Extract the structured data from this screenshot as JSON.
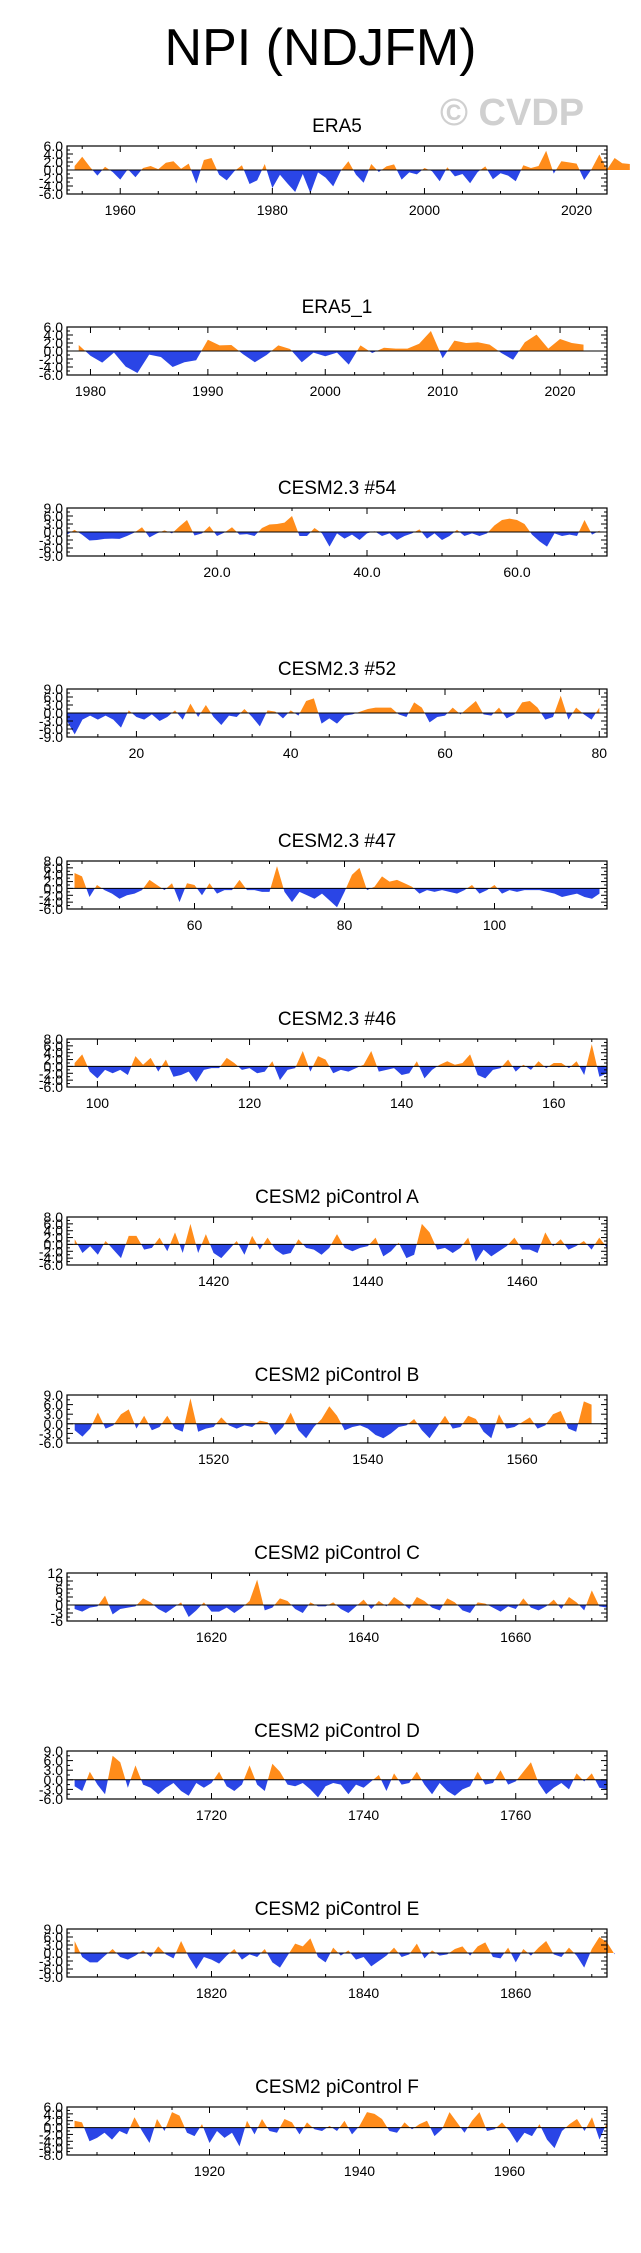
{
  "page": {
    "title": "NPI (NDJFM)",
    "watermark": "© CVDP"
  },
  "colors": {
    "positive": "#ff8c1a",
    "negative": "#2a45e6",
    "axis": "#000000"
  },
  "chart_data": [
    {
      "type": "area",
      "title": "ERA5",
      "xlim": [
        1953,
        2024
      ],
      "ylim": [
        -6,
        6
      ],
      "yticks": [
        -6,
        -4,
        -2,
        0,
        2,
        4,
        6
      ],
      "ytick_labels": [
        "-6.0",
        "-4.0",
        "-2.0",
        "0.0",
        "2.0",
        "4.0",
        "6.0"
      ],
      "xticks": [
        1960,
        1980,
        2000,
        2020
      ],
      "xtick_labels": [
        "1960",
        "1980",
        "2000",
        "2020"
      ],
      "x_start": 1954,
      "values": [
        1.0,
        3.3,
        0.8,
        -1.4,
        0.8,
        -0.5,
        -2.4,
        0.2,
        -1.8,
        0.5,
        1.0,
        0.2,
        1.8,
        2.2,
        0.3,
        1.6,
        -3.4,
        2.5,
        3.0,
        -1.2,
        -2.6,
        -0.3,
        1.2,
        -3.5,
        -2.6,
        1.5,
        -4.5,
        -1.2,
        -3.4,
        -5.5,
        -1.0,
        -5.8,
        -0.6,
        -1.9,
        -4.1,
        -0.2,
        2.2,
        -1.2,
        -3.2,
        1.5,
        -0.5,
        0.9,
        1.4,
        -2.4,
        -0.6,
        -1.1,
        0.5,
        -0.3,
        -2.8,
        0.7,
        -1.6,
        -1.0,
        -3.3,
        -0.5,
        0.9,
        -2.3,
        -0.8,
        -1.4,
        -2.8,
        1.2,
        0.5,
        1.0,
        4.8,
        -0.9,
        2.2,
        1.9,
        1.6,
        -2.5,
        0.3,
        3.9,
        0.1,
        3.0,
        1.7,
        1.5
      ]
    },
    {
      "type": "area",
      "title": "ERA5_1",
      "xlim": [
        1978,
        2024
      ],
      "ylim": [
        -6,
        6
      ],
      "yticks": [
        -6,
        -4,
        -2,
        0,
        2,
        4,
        6
      ],
      "ytick_labels": [
        "-6.0",
        "-4.0",
        "-2.0",
        "0.0",
        "2.0",
        "4.0",
        "6.0"
      ],
      "xticks": [
        1980,
        1990,
        2000,
        2010,
        2020
      ],
      "xtick_labels": [
        "1980",
        "1990",
        "2000",
        "2010",
        "2020"
      ],
      "x_start": 1979,
      "values": [
        1.5,
        -1.2,
        -2.9,
        -0.4,
        -3.9,
        -5.5,
        -0.9,
        -1.5,
        -4.0,
        -2.8,
        -2.3,
        2.8,
        1.4,
        1.5,
        -0.8,
        -2.8,
        -1.0,
        1.4,
        0.5,
        -2.8,
        -0.4,
        -1.3,
        -0.4,
        -3.4,
        1.4,
        -0.5,
        0.8,
        0.6,
        0.6,
        1.8,
        5.0,
        -1.8,
        2.6,
        2.0,
        2.2,
        1.6,
        -0.5,
        -2.2,
        2.2,
        4.1,
        0.6,
        3.0,
        2.0,
        1.6
      ]
    },
    {
      "type": "area",
      "title": "CESM2.3 #54",
      "xlim": [
        0,
        72
      ],
      "ylim": [
        -9,
        9
      ],
      "yticks": [
        -9,
        -6,
        -3,
        0,
        3,
        6,
        9
      ],
      "ytick_labels": [
        "-9.0",
        "-6.0",
        "-3.0",
        "0.0",
        "3.0",
        "6.0",
        "9.0"
      ],
      "xticks": [
        20,
        40,
        60
      ],
      "xtick_labels": [
        "20.0",
        "40.0",
        "60.0"
      ],
      "x_start": 0,
      "values": [
        -1.0,
        0.8,
        -1.0,
        -3.2,
        -3.0,
        -2.6,
        -2.5,
        -2.6,
        -1.5,
        -0.2,
        1.8,
        -2.0,
        -0.5,
        0.6,
        -0.5,
        2.1,
        4.5,
        -1.3,
        -0.5,
        2.2,
        -1.5,
        -0.2,
        1.8,
        -1.0,
        -0.8,
        -1.5,
        1.5,
        2.8,
        3.0,
        3.5,
        6.0,
        -1.5,
        -1.5,
        1.5,
        -0.5,
        -5.5,
        -0.5,
        -2.5,
        -1.0,
        -3.0,
        -0.5,
        0.3,
        -1.5,
        -0.5,
        -3.0,
        -1.5,
        -0.5,
        1.0,
        -2.5,
        -0.5,
        -3.0,
        -1.5,
        0.8,
        -1.5,
        -0.5,
        -1.5,
        -0.5,
        2.5,
        4.5,
        5.0,
        4.5,
        3.0,
        -1.0,
        -3.5,
        -5.5,
        -0.5,
        -1.5,
        -1.0,
        -1.5,
        4.5,
        -1.0,
        0.5
      ]
    },
    {
      "type": "area",
      "title": "CESM2.3 #52",
      "xlim": [
        11,
        81
      ],
      "ylim": [
        -9,
        9
      ],
      "yticks": [
        -9,
        -6,
        -3,
        0,
        3,
        6,
        9
      ],
      "ytick_labels": [
        "-9.0",
        "-6.0",
        "-3.0",
        "0.0",
        "3.0",
        "6.0",
        "9.0"
      ],
      "xticks": [
        20,
        40,
        60,
        80
      ],
      "xtick_labels": [
        "20",
        "40",
        "60",
        "80"
      ],
      "x_start": 11,
      "values": [
        -3.0,
        -8.0,
        -2.5,
        -1.0,
        -2.5,
        -1.0,
        -2.5,
        -5.5,
        1.0,
        -1.5,
        -2.5,
        -0.5,
        -3.0,
        -1.5,
        1.0,
        -2.5,
        3.5,
        -1.5,
        3.0,
        -1.5,
        -4.5,
        -1.0,
        -1.5,
        1.5,
        -1.5,
        -5.0,
        1.0,
        0.5,
        -2.0,
        1.0,
        -1.0,
        4.5,
        5.5,
        -4.0,
        -2.0,
        -4.0,
        -1.0,
        -0.5,
        0.5,
        1.5,
        2.0,
        2.0,
        2.0,
        -0.5,
        -1.5,
        4.0,
        2.0,
        -3.5,
        -1.5,
        -1.0,
        2.0,
        -0.5,
        2.0,
        4.5,
        -0.5,
        -1.0,
        2.0,
        -2.0,
        -0.5,
        4.0,
        4.5,
        2.0,
        -2.5,
        -1.5,
        6.5,
        -2.5,
        2.0,
        -0.5,
        -2.5,
        2.0
      ]
    },
    {
      "type": "area",
      "title": "CESM2.3 #47",
      "xlim": [
        43,
        115
      ],
      "ylim": [
        -6,
        8
      ],
      "yticks": [
        -6,
        -4,
        -2,
        0,
        2,
        4,
        6,
        8
      ],
      "ytick_labels": [
        "-6.0",
        "-4.0",
        "-2.0",
        "0.0",
        "2.0",
        "4.0",
        "6.0",
        "8.0"
      ],
      "xticks": [
        60,
        80,
        100
      ],
      "xtick_labels": [
        "60",
        "80",
        "100"
      ],
      "x_start": 44,
      "values": [
        4.5,
        3.5,
        -2.5,
        1.0,
        -0.5,
        -1.5,
        -3.0,
        -2.0,
        -1.5,
        -0.5,
        2.5,
        1.0,
        -0.5,
        1.5,
        -4.0,
        1.5,
        1.0,
        -2.0,
        1.5,
        -1.5,
        -0.5,
        -0.5,
        2.5,
        -0.5,
        -0.5,
        -1.0,
        -1.0,
        6.5,
        -1.0,
        -4.0,
        -1.0,
        -2.0,
        -3.0,
        -1.5,
        -3.5,
        -5.5,
        -1.0,
        4.0,
        6.0,
        -0.5,
        0.5,
        3.5,
        2.0,
        2.5,
        1.5,
        0.5,
        -1.5,
        -0.5,
        -1.0,
        -0.5,
        -1.0,
        -1.5,
        -0.5,
        1.0,
        -1.5,
        -0.5,
        1.0,
        -1.5,
        -0.5,
        -1.0,
        -0.5,
        -0.5,
        -0.5,
        -1.0,
        -1.5,
        -2.5,
        -2.0,
        -1.5,
        -2.5,
        -3.0,
        -1.5
      ]
    },
    {
      "type": "area",
      "title": "CESM2.3 #46",
      "xlim": [
        96,
        167
      ],
      "ylim": [
        -6,
        8
      ],
      "yticks": [
        -6,
        -4,
        -2,
        0,
        2,
        4,
        6,
        8
      ],
      "ytick_labels": [
        "-6.0",
        "-4.0",
        "-2.0",
        "0.0",
        "2.0",
        "4.0",
        "6.0",
        "8.0"
      ],
      "xticks": [
        100,
        120,
        140,
        160
      ],
      "xtick_labels": [
        "100",
        "120",
        "140",
        "160"
      ],
      "x_start": 97,
      "values": [
        1.0,
        3.5,
        -1.5,
        -3.5,
        -1.0,
        -2.0,
        -1.0,
        -2.5,
        3.0,
        0.5,
        2.5,
        -1.5,
        2.0,
        -3.0,
        -2.5,
        -1.5,
        -4.5,
        -1.0,
        -0.5,
        -0.5,
        2.5,
        1.0,
        -1.0,
        -0.5,
        -2.0,
        -1.5,
        1.5,
        -4.0,
        -1.0,
        -0.5,
        4.5,
        -1.5,
        3.0,
        2.0,
        -2.0,
        -1.0,
        -1.5,
        -0.5,
        0.5,
        4.5,
        -1.5,
        -1.0,
        -0.5,
        -2.5,
        -2.0,
        1.5,
        -3.5,
        -1.0,
        0.5,
        1.5,
        0.5,
        1.0,
        3.5,
        -2.5,
        -3.5,
        -1.0,
        -0.5,
        2.0,
        -1.5,
        0.5,
        -1.0,
        1.5,
        -0.5,
        1.0,
        1.0,
        -0.5,
        1.5,
        -2.5,
        6.5,
        -3.0,
        -2.0
      ]
    },
    {
      "type": "area",
      "title": "CESM2 piControl A",
      "xlim": [
        1401,
        1471
      ],
      "ylim": [
        -6,
        8
      ],
      "yticks": [
        -6,
        -4,
        -2,
        0,
        2,
        4,
        6,
        8
      ],
      "ytick_labels": [
        "-6.0",
        "-4.0",
        "-2.0",
        "0.0",
        "2.0",
        "4.0",
        "6.0",
        "8.0"
      ],
      "xticks": [
        1420,
        1440,
        1460
      ],
      "xtick_labels": [
        "1420",
        "1440",
        "1460"
      ],
      "x_start": 1402,
      "values": [
        1.5,
        -2.5,
        -0.5,
        -3.0,
        1.0,
        -1.5,
        -4.0,
        2.5,
        2.5,
        -1.5,
        -1.0,
        2.0,
        -2.0,
        3.5,
        -2.5,
        6.0,
        -2.5,
        3.0,
        -2.5,
        -4.0,
        -1.5,
        1.0,
        -3.0,
        2.5,
        -1.5,
        2.0,
        -1.5,
        -3.0,
        -2.5,
        1.5,
        -1.0,
        -1.5,
        -3.0,
        -1.0,
        3.0,
        -1.0,
        -2.0,
        -1.0,
        -0.5,
        2.0,
        -3.5,
        -2.0,
        0.5,
        -4.0,
        -3.0,
        6.0,
        3.5,
        -1.5,
        -1.0,
        -2.5,
        -1.0,
        2.0,
        -5.0,
        -1.5,
        -3.5,
        -2.0,
        -0.5,
        2.0,
        -1.5,
        -1.5,
        -2.5,
        3.5,
        -0.5,
        1.5,
        -1.5,
        -0.5,
        1.0,
        -1.5,
        2.0,
        -1.0
      ]
    },
    {
      "type": "area",
      "title": "CESM2 piControl B",
      "xlim": [
        1501,
        1571
      ],
      "ylim": [
        -6,
        9
      ],
      "yticks": [
        -6,
        -3,
        0,
        3,
        6,
        9
      ],
      "ytick_labels": [
        "-6.0",
        "-3.0",
        "0.0",
        "3.0",
        "6.0",
        "9.0"
      ],
      "xticks": [
        1520,
        1540,
        1560
      ],
      "xtick_labels": [
        "1520",
        "1540",
        "1560"
      ],
      "x_start": 1502,
      "values": [
        -2.0,
        -4.0,
        -1.5,
        3.5,
        -1.5,
        -0.5,
        3.0,
        4.5,
        -1.5,
        2.5,
        -2.0,
        -1.0,
        2.5,
        -1.5,
        -2.5,
        8.0,
        -2.5,
        -1.5,
        -1.0,
        2.0,
        -0.5,
        -1.5,
        -0.5,
        -1.0,
        1.0,
        0.5,
        -3.5,
        -1.0,
        3.5,
        -2.0,
        -4.5,
        -1.0,
        1.5,
        5.5,
        2.5,
        -2.0,
        -1.0,
        -0.5,
        -1.5,
        -3.5,
        -4.5,
        -3.0,
        -1.0,
        -0.5,
        1.5,
        -2.0,
        -4.5,
        -1.0,
        2.5,
        -1.5,
        -1.0,
        2.5,
        1.5,
        -2.5,
        -4.5,
        3.0,
        -1.5,
        -1.0,
        0.5,
        2.0,
        -1.5,
        -0.5,
        3.0,
        4.0,
        -1.5,
        -2.5,
        7.0,
        6.0
      ]
    },
    {
      "type": "area",
      "title": "CESM2 piControl C",
      "xlim": [
        1601,
        1672
      ],
      "ylim": [
        -6,
        12
      ],
      "yticks": [
        -6,
        -3,
        0,
        3,
        6,
        9,
        12
      ],
      "ytick_labels": [
        "-6",
        "-3",
        "0",
        "3",
        "6",
        "9",
        "12"
      ],
      "xticks": [
        1620,
        1640,
        1660
      ],
      "xtick_labels": [
        "1620",
        "1640",
        "1660"
      ],
      "x_start": 1602,
      "values": [
        -1.5,
        -2.5,
        -1.0,
        -0.5,
        3.5,
        -3.5,
        -1.5,
        -1.0,
        -0.5,
        2.5,
        1.0,
        -1.5,
        -3.0,
        -1.0,
        1.0,
        -4.5,
        -2.0,
        1.0,
        -2.5,
        -2.5,
        -1.0,
        -3.0,
        -1.0,
        1.5,
        9.5,
        -2.0,
        -1.0,
        2.5,
        1.5,
        -1.5,
        -3.0,
        1.0,
        -0.5,
        -0.5,
        1.0,
        -1.5,
        -3.0,
        -0.5,
        2.0,
        -1.5,
        1.5,
        -0.5,
        3.0,
        1.0,
        -1.5,
        3.0,
        1.5,
        -1.0,
        -2.0,
        2.5,
        1.0,
        -2.0,
        -3.0,
        1.0,
        0.5,
        -1.0,
        -2.5,
        -0.5,
        -1.5,
        2.5,
        -1.0,
        -2.0,
        -0.5,
        2.0,
        -1.5,
        3.0,
        1.0,
        -2.0,
        5.5,
        -0.5,
        -1.0
      ]
    },
    {
      "type": "area",
      "title": "CESM2 piControl D",
      "xlim": [
        1701,
        1772
      ],
      "ylim": [
        -6,
        9
      ],
      "yticks": [
        -6,
        -3,
        0,
        3,
        6,
        9
      ],
      "ytick_labels": [
        "-6.0",
        "-3.0",
        "0.0",
        "3.0",
        "6.0",
        "9.0"
      ],
      "xticks": [
        1720,
        1740,
        1760
      ],
      "xtick_labels": [
        "1720",
        "1740",
        "1760"
      ],
      "x_start": 1702,
      "values": [
        -2.0,
        -3.5,
        2.5,
        -1.5,
        -4.5,
        7.5,
        5.5,
        -2.5,
        4.5,
        -1.5,
        -2.5,
        -4.5,
        -2.5,
        -1.0,
        -3.5,
        -5.0,
        -1.0,
        -2.5,
        -1.0,
        2.5,
        -2.0,
        -3.5,
        -1.5,
        4.5,
        -1.5,
        -3.5,
        5.0,
        2.5,
        -1.5,
        -2.0,
        -1.0,
        -3.0,
        -5.5,
        -2.0,
        -1.0,
        -1.5,
        -4.5,
        -1.5,
        -2.5,
        -0.5,
        1.5,
        -3.5,
        2.0,
        -1.5,
        -1.0,
        2.5,
        -1.5,
        -4.5,
        -1.0,
        -3.5,
        -5.0,
        -3.0,
        -2.0,
        2.5,
        -1.5,
        -1.0,
        3.0,
        -1.5,
        -0.5,
        2.5,
        5.5,
        -1.0,
        -4.5,
        -2.5,
        -1.0,
        -3.0,
        2.0,
        -0.5,
        2.0,
        -2.5,
        -3.0
      ]
    },
    {
      "type": "area",
      "title": "CESM2 piControl E",
      "xlim": [
        1801,
        1872
      ],
      "ylim": [
        -9,
        9
      ],
      "yticks": [
        -9,
        -6,
        -3,
        0,
        3,
        6,
        9
      ],
      "ytick_labels": [
        "-9.0",
        "-6.0",
        "-3.0",
        "0.0",
        "3.0",
        "6.0",
        "9.0"
      ],
      "xticks": [
        1820,
        1840,
        1860
      ],
      "xtick_labels": [
        "1820",
        "1840",
        "1860"
      ],
      "x_start": 1802,
      "values": [
        4.5,
        -1.5,
        -3.5,
        -3.5,
        -1.0,
        1.5,
        -1.5,
        -2.5,
        -1.0,
        1.0,
        -1.5,
        2.5,
        -0.5,
        -2.0,
        4.5,
        -1.5,
        -6.0,
        -1.5,
        -2.5,
        -4.0,
        -1.0,
        1.5,
        -2.5,
        -0.5,
        -1.5,
        1.5,
        -3.5,
        -5.5,
        -1.0,
        3.5,
        2.5,
        5.5,
        -1.5,
        -3.5,
        2.0,
        -1.0,
        1.0,
        -2.5,
        -1.5,
        -5.0,
        -3.0,
        -1.0,
        2.0,
        -1.5,
        -0.5,
        3.5,
        -2.0,
        1.0,
        -1.0,
        -0.5,
        1.5,
        2.5,
        -1.0,
        2.5,
        4.0,
        -1.5,
        -2.0,
        2.0,
        -3.5,
        1.5,
        -1.0,
        2.0,
        4.5,
        -0.5,
        -1.5,
        2.0,
        -1.0,
        -5.5,
        1.5,
        6.0,
        4.0,
        -0.5
      ]
    },
    {
      "type": "area",
      "title": "CESM2 piControl F",
      "xlim": [
        1901,
        1973
      ],
      "ylim": [
        -8,
        6
      ],
      "yticks": [
        -8,
        -6,
        -4,
        -2,
        0,
        2,
        4,
        6
      ],
      "ytick_labels": [
        "-8.0",
        "-6.0",
        "-4.0",
        "-2.0",
        "0.0",
        "2.0",
        "4.0",
        "6.0"
      ],
      "xticks": [
        1920,
        1940,
        1960
      ],
      "xtick_labels": [
        "1920",
        "1940",
        "1960"
      ],
      "x_start": 1902,
      "values": [
        2.0,
        1.5,
        -4.0,
        -3.0,
        -1.5,
        -3.5,
        -1.0,
        -2.0,
        3.0,
        -1.0,
        -4.5,
        2.5,
        -1.0,
        4.5,
        3.5,
        -1.5,
        -2.5,
        1.0,
        -4.5,
        -1.0,
        -3.0,
        -1.5,
        -5.5,
        2.0,
        -2.0,
        2.5,
        -1.0,
        -1.5,
        2.5,
        1.5,
        -2.0,
        1.5,
        -0.5,
        -1.0,
        0.5,
        -1.0,
        2.0,
        -2.0,
        0.5,
        4.5,
        4.0,
        2.5,
        -1.0,
        -1.5,
        1.5,
        -0.5,
        1.0,
        2.0,
        -2.5,
        -0.5,
        4.5,
        1.5,
        -1.5,
        2.0,
        4.5,
        -1.0,
        -0.5,
        1.5,
        -1.0,
        -4.5,
        -1.5,
        -2.5,
        1.0,
        -3.5,
        -6.0,
        -1.0,
        1.0,
        2.5,
        -1.0,
        3.0,
        -3.5,
        1.5
      ]
    }
  ]
}
